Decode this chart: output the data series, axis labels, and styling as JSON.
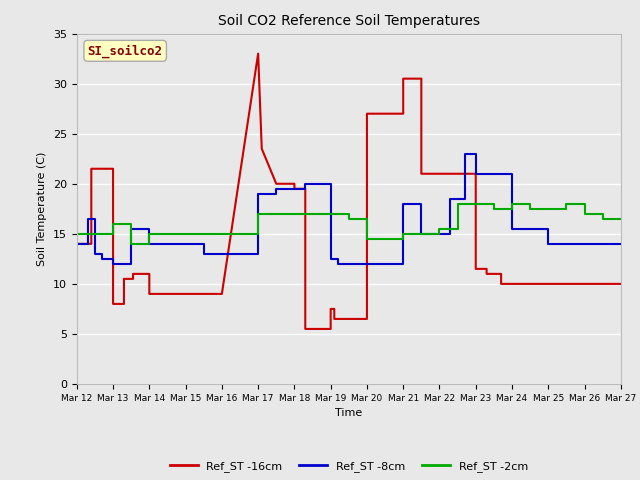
{
  "title": "Soil CO2 Reference Soil Temperatures",
  "xlabel": "Time",
  "ylabel": "Soil Temperature (C)",
  "ylim": [
    0,
    35
  ],
  "annotation": "SI_soilco2",
  "annotation_color": "#8B0000",
  "annotation_bg": "#FFFFC0",
  "plot_bg_color": "#E8E8E8",
  "fig_bg_color": "#E8E8E8",
  "x_labels": [
    "Mar 12",
    "Mar 13",
    "Mar 14",
    "Mar 15",
    "Mar 16",
    "Mar 17",
    "Mar 18",
    "Mar 19",
    "Mar 20",
    "Mar 21",
    "Mar 22",
    "Mar 23",
    "Mar 24",
    "Mar 25",
    "Mar 26",
    "Mar 27"
  ],
  "series": [
    {
      "name": "Ref_ST -16cm",
      "color": "#CC0000",
      "linewidth": 1.5,
      "x": [
        0,
        0.4,
        0.4,
        1.0,
        1.0,
        1.3,
        1.3,
        1.55,
        1.55,
        2.0,
        2.0,
        2.4,
        2.4,
        3.0,
        3.0,
        4.0,
        4.0,
        5.0,
        5.0,
        5.1,
        5.1,
        5.5,
        5.5,
        6.0,
        6.0,
        6.3,
        6.3,
        7.0,
        7.0,
        7.1,
        7.1,
        7.3,
        7.3,
        7.55,
        7.55,
        8.0,
        8.0,
        9.0,
        9.0,
        9.5,
        9.5,
        10.3,
        10.3,
        11.0,
        11.0,
        11.3,
        11.3,
        11.7,
        11.7,
        12.0,
        12.0,
        14.3,
        14.3,
        15.0
      ],
      "y": [
        14,
        14,
        21.5,
        21.5,
        8,
        8,
        10.5,
        10.5,
        11,
        11,
        9.0,
        9.0,
        9.0,
        9.0,
        9.0,
        9.0,
        9.0,
        33,
        33,
        23.5,
        23.5,
        20,
        20,
        20,
        19.5,
        19.5,
        5.5,
        5.5,
        7.5,
        7.5,
        6.5,
        6.5,
        6.5,
        6.5,
        6.5,
        6.5,
        27,
        27,
        30.5,
        30.5,
        21,
        21,
        21,
        21,
        11.5,
        11.5,
        11,
        11,
        10,
        10,
        10,
        10,
        10,
        10
      ]
    },
    {
      "name": "Ref_ST -8cm",
      "color": "#0000CC",
      "linewidth": 1.5,
      "x": [
        0,
        0.3,
        0.3,
        0.5,
        0.5,
        0.7,
        0.7,
        1.0,
        1.0,
        1.5,
        1.5,
        2.0,
        2.0,
        3.5,
        3.5,
        5.0,
        5.0,
        5.5,
        5.5,
        6.3,
        6.3,
        7.0,
        7.0,
        7.2,
        7.2,
        8.0,
        8.0,
        9.0,
        9.0,
        9.5,
        9.5,
        10.3,
        10.3,
        10.7,
        10.7,
        11.0,
        11.0,
        11.3,
        11.3,
        12.0,
        12.0,
        13.0,
        13.0,
        14.0,
        14.0,
        15.0
      ],
      "y": [
        14,
        14,
        16.5,
        16.5,
        13,
        13,
        12.5,
        12.5,
        12,
        12,
        15.5,
        15.5,
        14,
        14,
        13,
        13,
        19,
        19,
        19.5,
        19.5,
        20,
        20,
        12.5,
        12.5,
        12,
        12,
        12,
        12,
        18,
        18,
        15,
        15,
        18.5,
        18.5,
        23,
        23,
        21,
        21,
        21,
        21,
        15.5,
        15.5,
        14,
        14,
        14,
        14
      ]
    },
    {
      "name": "Ref_ST -2cm",
      "color": "#00AA00",
      "linewidth": 1.5,
      "x": [
        0,
        1.0,
        1.0,
        1.5,
        1.5,
        2.0,
        2.0,
        3.0,
        3.0,
        5.0,
        5.0,
        5.5,
        5.5,
        7.5,
        7.5,
        8.0,
        8.0,
        9.0,
        9.0,
        10.0,
        10.0,
        10.5,
        10.5,
        11.0,
        11.0,
        11.5,
        11.5,
        12.0,
        12.0,
        12.5,
        12.5,
        13.5,
        13.5,
        14.0,
        14.0,
        14.5,
        14.5,
        15.0
      ],
      "y": [
        15,
        15,
        16,
        16,
        14,
        14,
        15,
        15,
        15,
        15,
        17,
        17,
        17,
        17,
        16.5,
        16.5,
        14.5,
        14.5,
        15,
        15,
        15.5,
        15.5,
        18,
        18,
        18,
        18,
        17.5,
        17.5,
        18,
        18,
        17.5,
        17.5,
        18,
        18,
        17,
        17,
        16.5,
        16.5
      ]
    }
  ],
  "legend": [
    {
      "label": "Ref_ST -16cm",
      "color": "#CC0000"
    },
    {
      "label": "Ref_ST -8cm",
      "color": "#0000CC"
    },
    {
      "label": "Ref_ST -2cm",
      "color": "#00AA00"
    }
  ]
}
